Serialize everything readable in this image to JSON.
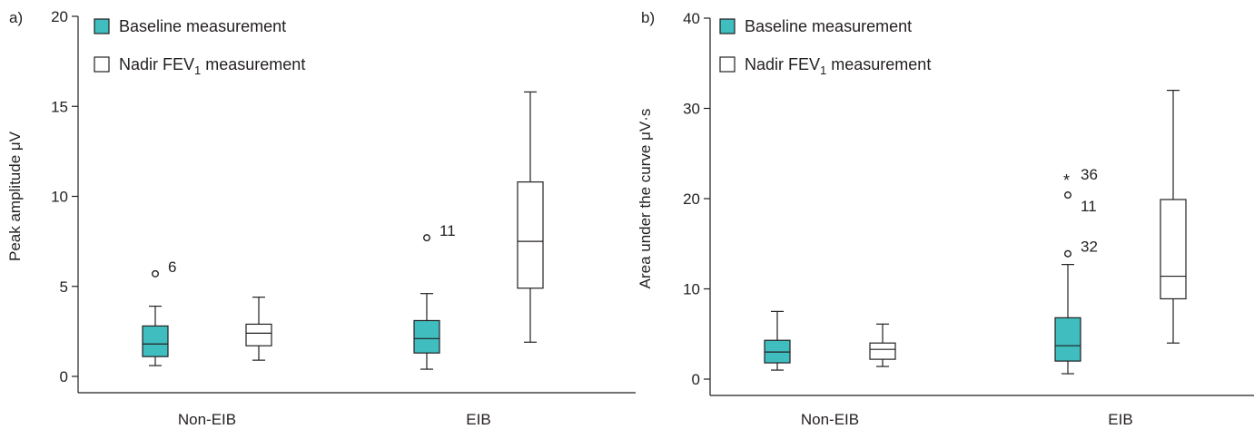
{
  "colors": {
    "baseline_fill": "#3fbdbf",
    "nadir_fill": "#ffffff",
    "stroke": "#231f20"
  },
  "chart_data": [
    {
      "panel": "a)",
      "type": "box",
      "title": "",
      "xlabel": "",
      "ylabel": "Peak amplitude μV",
      "ylim": [
        0,
        20
      ],
      "yticks": [
        0,
        5,
        10,
        15,
        20
      ],
      "categories": [
        "Non-EIB",
        "EIB"
      ],
      "legend": {
        "placement": "top-left",
        "entries": [
          {
            "prefix": "Baseline measurement",
            "sub": "",
            "suffix": ""
          },
          {
            "prefix": "Nadir FEV",
            "sub": "1",
            "suffix": " measurement"
          }
        ]
      },
      "series": [
        {
          "name": "Baseline measurement",
          "boxes": [
            {
              "category": "Non-EIB",
              "whisker_low": 0.6,
              "q1": 1.1,
              "median": 1.8,
              "q3": 2.8,
              "whisker_high": 3.9,
              "outliers": [
                {
                  "value": 5.7,
                  "marker": "circle",
                  "label": "6"
                }
              ]
            },
            {
              "category": "EIB",
              "whisker_low": 0.4,
              "q1": 1.3,
              "median": 2.1,
              "q3": 3.1,
              "whisker_high": 4.6,
              "outliers": [
                {
                  "value": 7.7,
                  "marker": "circle",
                  "label": "11"
                }
              ]
            }
          ]
        },
        {
          "name": "Nadir FEV1 measurement",
          "boxes": [
            {
              "category": "Non-EIB",
              "whisker_low": 0.9,
              "q1": 1.7,
              "median": 2.4,
              "q3": 2.9,
              "whisker_high": 4.4,
              "outliers": []
            },
            {
              "category": "EIB",
              "whisker_low": 1.9,
              "q1": 4.9,
              "median": 7.5,
              "q3": 10.8,
              "whisker_high": 15.8,
              "outliers": []
            }
          ]
        }
      ]
    },
    {
      "panel": "b)",
      "type": "box",
      "title": "",
      "xlabel": "",
      "ylabel": "Area under the curve μV·s",
      "ylim": [
        0,
        40
      ],
      "yticks": [
        0,
        10,
        20,
        30,
        40
      ],
      "categories": [
        "Non-EIB",
        "EIB"
      ],
      "legend": {
        "placement": "top-left",
        "entries": [
          {
            "prefix": "Baseline measurement",
            "sub": "",
            "suffix": ""
          },
          {
            "prefix": "Nadir FEV",
            "sub": "1",
            "suffix": " measurement"
          }
        ]
      },
      "series": [
        {
          "name": "Baseline measurement",
          "boxes": [
            {
              "category": "Non-EIB",
              "whisker_low": 1.0,
              "q1": 1.8,
              "median": 3.0,
              "q3": 4.3,
              "whisker_high": 7.5,
              "outliers": []
            },
            {
              "category": "EIB",
              "whisker_low": 0.6,
              "q1": 2.0,
              "median": 3.7,
              "q3": 6.8,
              "whisker_high": 12.7,
              "outliers": [
                {
                  "value": 22.3,
                  "marker": "asterisk",
                  "label": "36"
                },
                {
                  "value": 20.4,
                  "marker": "circle",
                  "label": "11"
                },
                {
                  "value": 13.9,
                  "marker": "circle",
                  "label": "32"
                }
              ]
            }
          ]
        },
        {
          "name": "Nadir FEV1 measurement",
          "boxes": [
            {
              "category": "Non-EIB",
              "whisker_low": 1.4,
              "q1": 2.2,
              "median": 3.3,
              "q3": 4.0,
              "whisker_high": 6.1,
              "outliers": []
            },
            {
              "category": "EIB",
              "whisker_low": 4.0,
              "q1": 8.9,
              "median": 11.4,
              "q3": 19.9,
              "whisker_high": 32.0,
              "outliers": []
            }
          ]
        }
      ]
    }
  ]
}
